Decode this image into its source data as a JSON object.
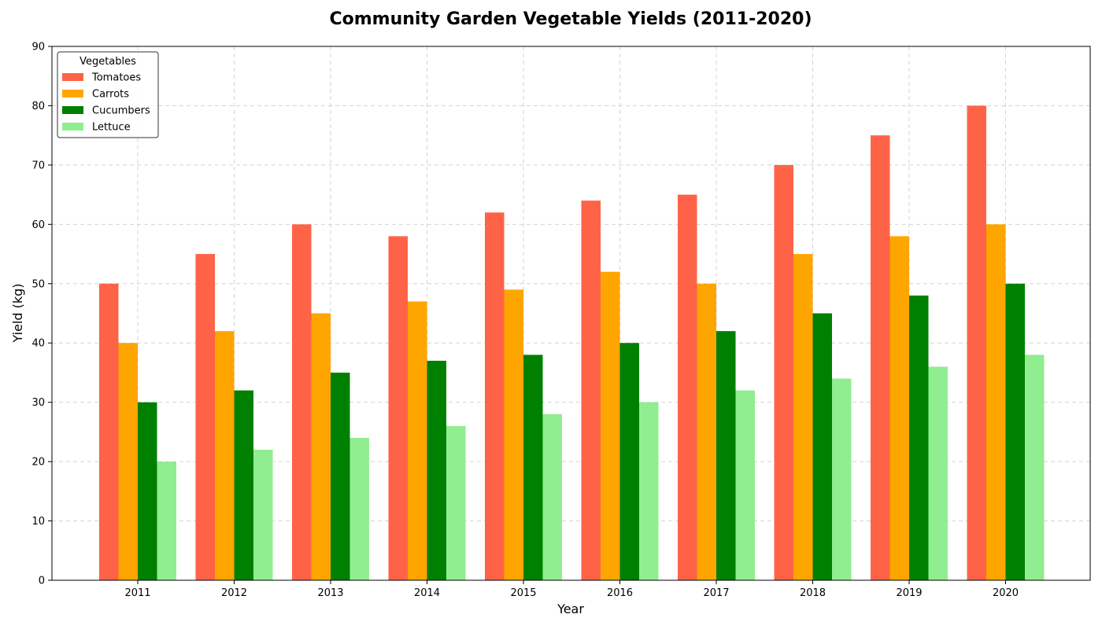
{
  "chart_data": {
    "type": "bar",
    "title": "Community Garden Vegetable Yields (2011-2020)",
    "xlabel": "Year",
    "ylabel": "Yield (kg)",
    "ylim": [
      0,
      90
    ],
    "yticks": [
      0,
      10,
      20,
      30,
      40,
      50,
      60,
      70,
      80,
      90
    ],
    "grid": true,
    "legend": {
      "title": "Vegetables",
      "placement": "top-left"
    },
    "categories": [
      "2011",
      "2012",
      "2013",
      "2014",
      "2015",
      "2016",
      "2017",
      "2018",
      "2019",
      "2020"
    ],
    "series": [
      {
        "name": "Tomatoes",
        "color": "#ff6347",
        "values": [
          50,
          55,
          60,
          58,
          62,
          64,
          65,
          70,
          75,
          80
        ]
      },
      {
        "name": "Carrots",
        "color": "#ffa500",
        "values": [
          40,
          42,
          45,
          47,
          49,
          52,
          50,
          55,
          58,
          60
        ]
      },
      {
        "name": "Cucumbers",
        "color": "#008000",
        "values": [
          30,
          32,
          35,
          37,
          38,
          40,
          42,
          45,
          48,
          50
        ]
      },
      {
        "name": "Lettuce",
        "color": "#90ee90",
        "values": [
          20,
          22,
          24,
          26,
          28,
          30,
          32,
          34,
          36,
          38
        ]
      }
    ]
  }
}
